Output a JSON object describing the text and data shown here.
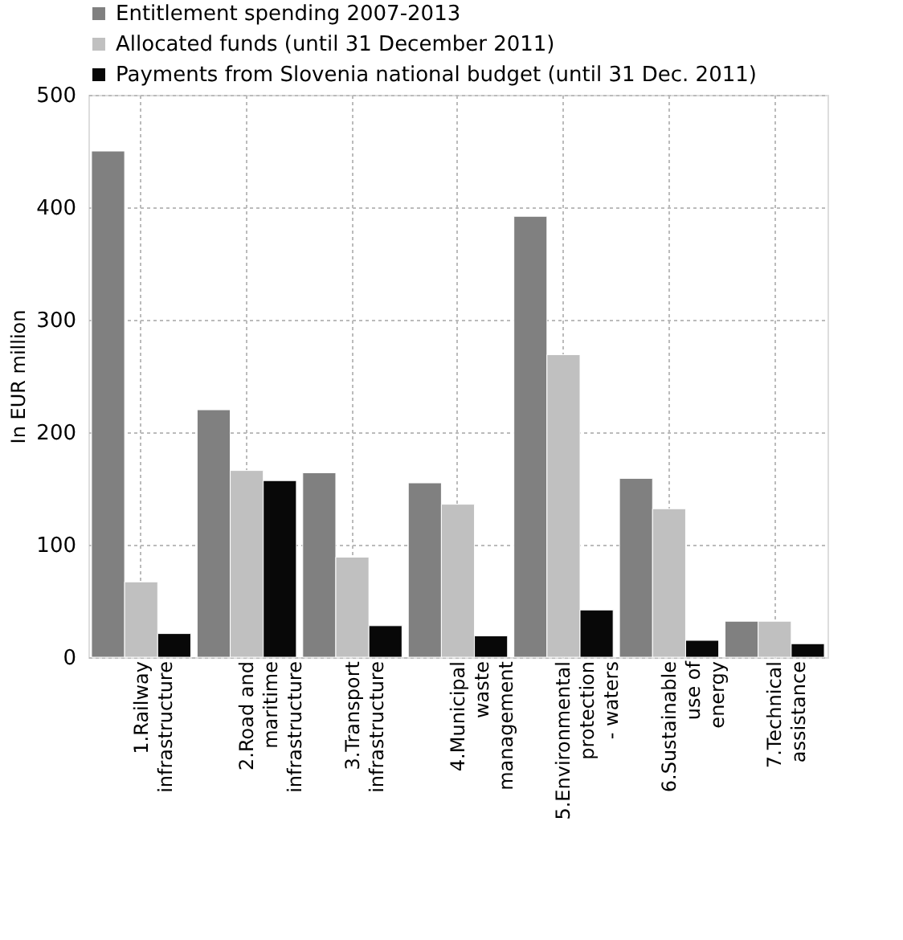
{
  "chart_data": {
    "type": "bar",
    "categories": [
      "1.Railway infrastructure",
      "2.Road and maritime infrastructure",
      "3.Transport infrastructure",
      "4.Municipal waste management",
      "5.Environmental protection - waters",
      "6.Sustainable use of energy",
      "7.Technical assistance"
    ],
    "series": [
      {
        "name": "Entitlement spending 2007-2013",
        "color": "#808080",
        "values": [
          450,
          220,
          164,
          155,
          392,
          159,
          32
        ]
      },
      {
        "name": "Allocated funds (until 31 December 2011)",
        "color": "#c0c0c0",
        "values": [
          67,
          166,
          89,
          136,
          269,
          132,
          32
        ]
      },
      {
        "name": "Payments from Slovenia national budget (until 31 Dec. 2011)",
        "color": "#080808",
        "values": [
          21,
          157,
          28,
          19,
          42,
          15,
          12
        ]
      }
    ],
    "ylabel": "In EUR million",
    "ylim": [
      0,
      500
    ],
    "yticks": [
      0,
      100,
      200,
      300,
      400,
      500
    ],
    "grid": true,
    "legend": "top left"
  }
}
